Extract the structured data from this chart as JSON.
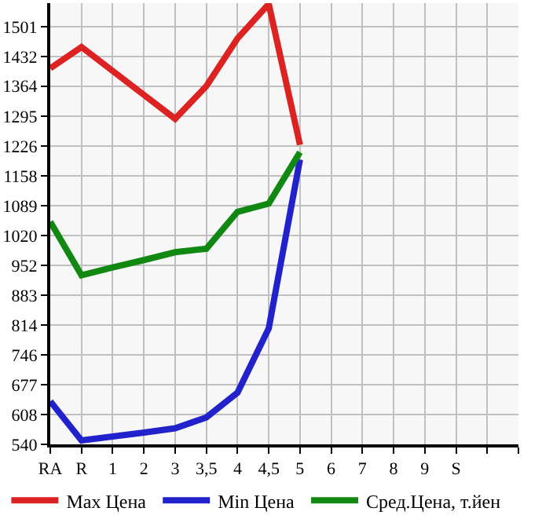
{
  "chart_data": {
    "type": "line",
    "categories": [
      "RA",
      "R",
      "1",
      "2",
      "3",
      "3,5",
      "4",
      "4,5",
      "5",
      "6",
      "7",
      "8",
      "9",
      "S",
      null,
      null
    ],
    "series": [
      {
        "name": "Max Цена",
        "color": "#dd2222",
        "values": [
          1405,
          1454,
          1399,
          1344,
          1289,
          1364,
          1474,
          1553,
          1229,
          null,
          null,
          null,
          null,
          null,
          null,
          null
        ]
      },
      {
        "name": "Min Цена",
        "color": "#2222cc",
        "values": [
          639,
          549,
          558,
          567,
          577,
          602,
          659,
          807,
          1195,
          null,
          null,
          null,
          null,
          null,
          null,
          null
        ]
      },
      {
        "name": "Сред.Цена, т.йен",
        "color": "#118811",
        "values": [
          1052,
          929,
          947,
          964,
          982,
          990,
          1075,
          1094,
          1212,
          null,
          null,
          null,
          null,
          null,
          null,
          null
        ]
      }
    ],
    "ylim": [
      540,
      1555
    ],
    "yticks": [
      540,
      608,
      677,
      746,
      814,
      883,
      952,
      1020,
      1089,
      1158,
      1226,
      1295,
      1364,
      1432,
      1501
    ],
    "grid": true,
    "legend": "bottom",
    "marker": "none",
    "line_style": "solid"
  }
}
